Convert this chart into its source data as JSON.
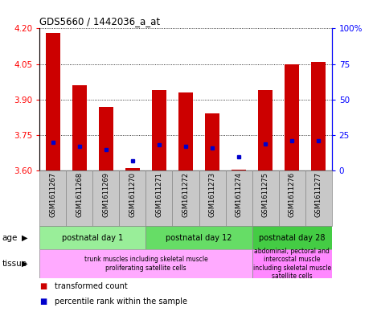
{
  "title": "GDS5660 / 1442036_a_at",
  "samples": [
    "GSM1611267",
    "GSM1611268",
    "GSM1611269",
    "GSM1611270",
    "GSM1611271",
    "GSM1611272",
    "GSM1611273",
    "GSM1611274",
    "GSM1611275",
    "GSM1611276",
    "GSM1611277"
  ],
  "transformed_count": [
    4.18,
    3.96,
    3.87,
    3.61,
    3.94,
    3.93,
    3.84,
    3.605,
    3.94,
    4.05,
    4.06
  ],
  "percentile_rank": [
    20,
    17,
    15,
    7,
    18,
    17,
    16,
    10,
    19,
    21,
    21
  ],
  "ymin": 3.6,
  "ymax": 4.2,
  "yticks": [
    3.6,
    3.75,
    3.9,
    4.05,
    4.2
  ],
  "y2min": 0,
  "y2max": 100,
  "y2ticks": [
    0,
    25,
    50,
    75,
    100
  ],
  "bar_color": "#cc0000",
  "dot_color": "#0000cc",
  "bar_width": 0.55,
  "age_groups": [
    {
      "label": "postnatal day 1",
      "start": 0,
      "end": 3,
      "color": "#99ee99"
    },
    {
      "label": "postnatal day 12",
      "start": 4,
      "end": 7,
      "color": "#66dd66"
    },
    {
      "label": "postnatal day 28",
      "start": 8,
      "end": 10,
      "color": "#44cc44"
    }
  ],
  "tissue_groups": [
    {
      "label": "trunk muscles including skeletal muscle\nproliferating satellite cells",
      "start": 0,
      "end": 7,
      "color": "#ffaaff"
    },
    {
      "label": "abdominal, pectoral and\nintercostal muscle\nincluding skeletal muscle\nsatellite cells",
      "start": 8,
      "end": 10,
      "color": "#ff88ff"
    }
  ],
  "age_label": "age",
  "tissue_label": "tissue",
  "legend1": "transformed count",
  "legend2": "percentile rank within the sample",
  "xlabel_bg": "#c8c8c8",
  "plot_bg": "#ffffff"
}
